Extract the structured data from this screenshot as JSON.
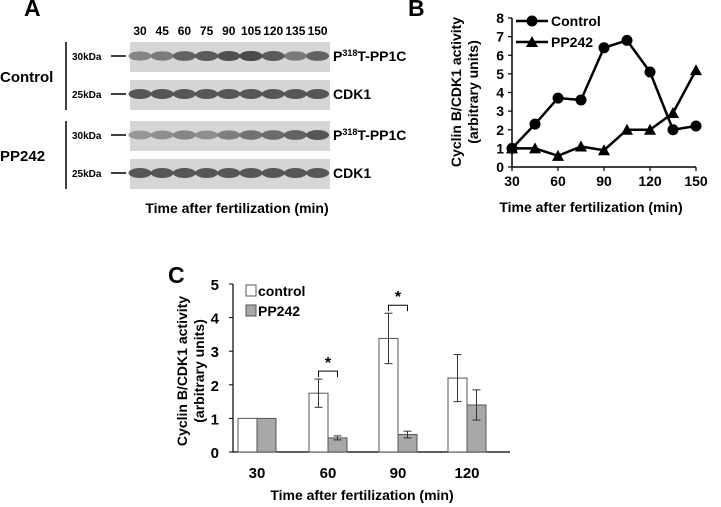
{
  "panel_a": {
    "letter": "A",
    "timepoints": [
      "30",
      "45",
      "60",
      "75",
      "90",
      "105",
      "120",
      "135",
      "150"
    ],
    "groups": [
      {
        "name": "Control",
        "blots": [
          {
            "marker": "30kDa",
            "label_main": "P",
            "label_sup": "318",
            "label_rest": "T-PP1C",
            "intensities": [
              0.55,
              0.62,
              0.78,
              0.82,
              0.88,
              0.92,
              0.82,
              0.62,
              0.78
            ]
          },
          {
            "marker": "25kDa",
            "label_main": "CDK1",
            "label_sup": "",
            "label_rest": "",
            "intensities": [
              0.85,
              0.85,
              0.85,
              0.85,
              0.85,
              0.85,
              0.85,
              0.85,
              0.85
            ]
          }
        ]
      },
      {
        "name": "PP242",
        "blots": [
          {
            "marker": "30kDa",
            "label_main": "P",
            "label_sup": "318",
            "label_rest": "T-PP1C",
            "intensities": [
              0.45,
              0.5,
              0.55,
              0.5,
              0.6,
              0.68,
              0.72,
              0.78,
              0.85
            ]
          },
          {
            "marker": "25kDa",
            "label_main": "CDK1",
            "label_sup": "",
            "label_rest": "",
            "intensities": [
              0.85,
              0.85,
              0.85,
              0.85,
              0.85,
              0.85,
              0.85,
              0.85,
              0.85
            ]
          }
        ]
      }
    ],
    "xlabel": "Time after fertilization (min)"
  },
  "chart_data": [
    {
      "type": "line",
      "panel": "B",
      "ylabel_line1": "Cyclin B/CDK1 activity",
      "ylabel_line2": "(arbitrary units)",
      "xlabel": "Time after fertilization (min)",
      "x": [
        30,
        45,
        60,
        75,
        90,
        105,
        120,
        135,
        150
      ],
      "xticks": [
        30,
        60,
        90,
        120,
        150
      ],
      "yticks": [
        0,
        1,
        2,
        3,
        4,
        5,
        6,
        7,
        8
      ],
      "xlim": [
        30,
        150
      ],
      "ylim": [
        0,
        8
      ],
      "legend_position": "top-left",
      "series": [
        {
          "name": "Control",
          "marker": "circle",
          "values": [
            1.0,
            2.3,
            3.7,
            3.6,
            6.4,
            6.8,
            5.1,
            2.0,
            2.2
          ]
        },
        {
          "name": "PP242",
          "marker": "triangle",
          "values": [
            1.0,
            1.0,
            0.6,
            1.1,
            0.9,
            2.0,
            2.0,
            2.9,
            5.2
          ]
        }
      ]
    },
    {
      "type": "bar",
      "panel": "C",
      "ylabel_line1": "Cyclin B/CDK1 activity",
      "ylabel_line2": "(arbitrary units)",
      "xlabel": "Time after fertilization (min)",
      "categories": [
        "30",
        "60",
        "90",
        "120"
      ],
      "yticks": [
        0,
        1,
        2,
        3,
        4,
        5
      ],
      "ylim": [
        0,
        5
      ],
      "legend_position": "top-left",
      "series": [
        {
          "name": "control",
          "color": "#ffffff",
          "values": [
            1.0,
            1.75,
            3.38,
            2.2
          ],
          "errors": [
            0,
            0.42,
            0.75,
            0.7
          ]
        },
        {
          "name": "PP242",
          "color": "#a8a8a8",
          "values": [
            1.0,
            0.42,
            0.52,
            1.4
          ],
          "errors": [
            0,
            0.06,
            0.1,
            0.45
          ]
        }
      ],
      "significance": [
        {
          "category": "60",
          "mark": "*"
        },
        {
          "category": "90",
          "mark": "*"
        }
      ]
    }
  ]
}
